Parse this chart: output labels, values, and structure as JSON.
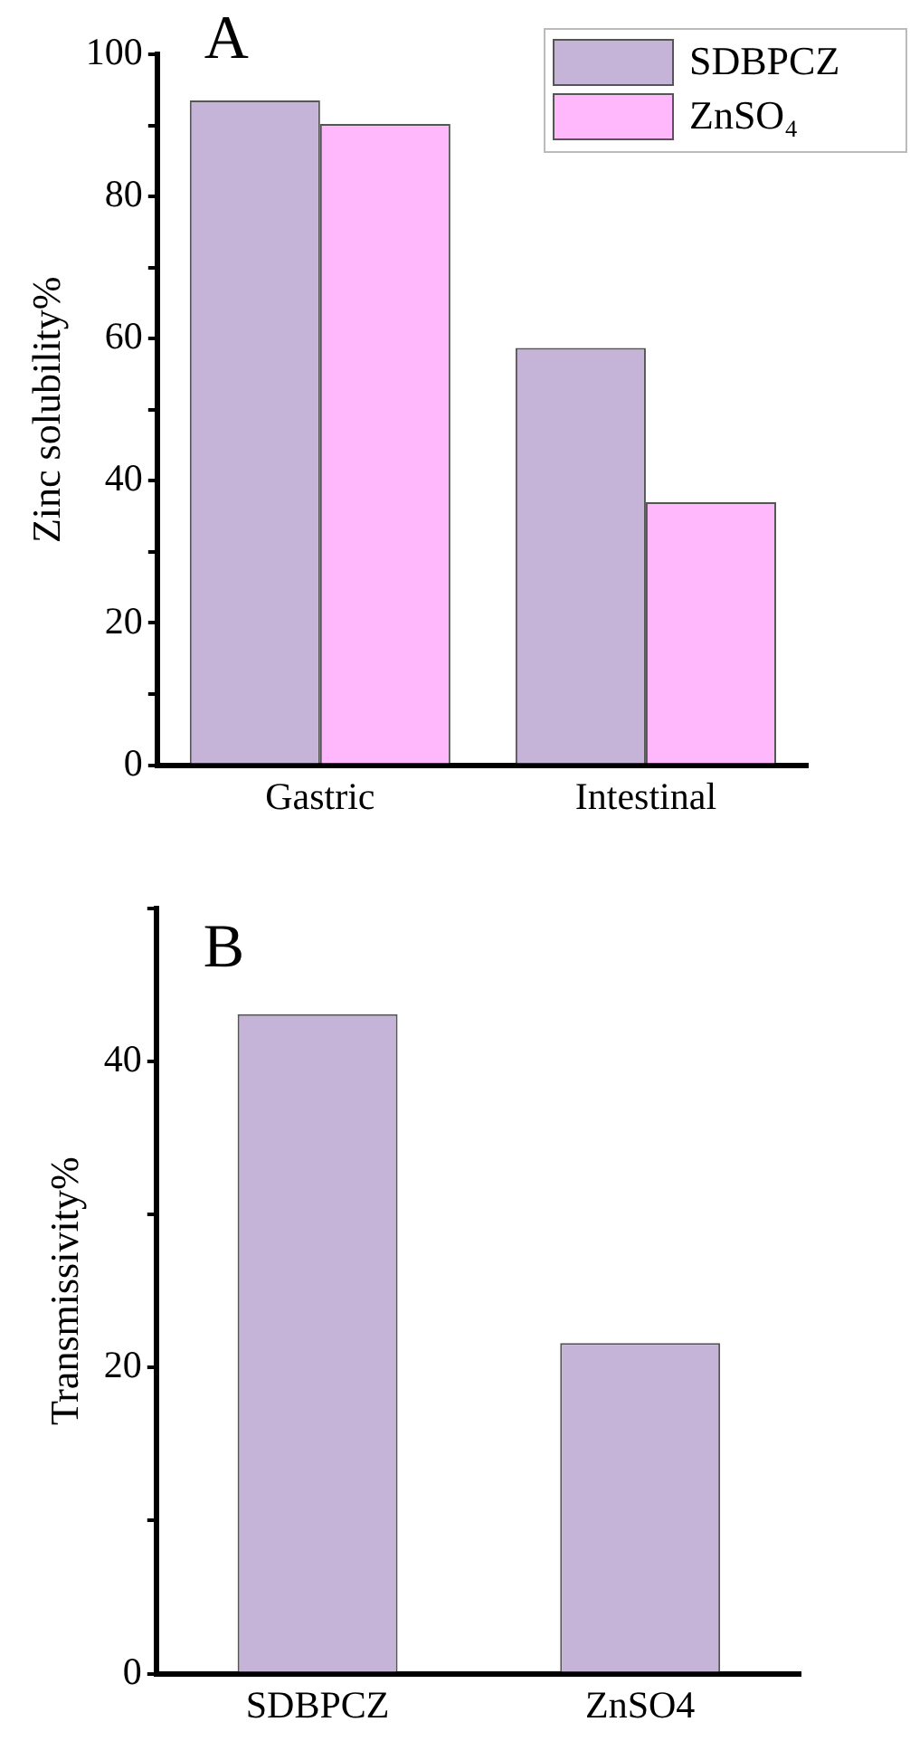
{
  "chart_data": [
    {
      "type": "bar",
      "title": "A",
      "ylabel": "Zinc solubility%",
      "categories": [
        "Gastric",
        "Intestinal"
      ],
      "series": [
        {
          "name": "SDBPCZ",
          "color": "#c6b4d8",
          "values": [
            93.5,
            58.7
          ]
        },
        {
          "name": "ZnSO₄",
          "color": "#ffb8fc",
          "values": [
            90.2,
            37.0
          ]
        }
      ],
      "ylim": [
        0,
        100
      ],
      "yticks": [
        0,
        {
          "value": 10,
          "label": null
        },
        20,
        {
          "value": 30,
          "label": null
        },
        40,
        {
          "value": 50,
          "label": null
        },
        60,
        {
          "value": 70,
          "label": null
        },
        80,
        {
          "value": 90,
          "label": null
        },
        100
      ],
      "grid": false,
      "legend": "top right"
    },
    {
      "type": "bar",
      "title": "B",
      "ylabel": "Transmissivity%",
      "categories": [
        "SDBPCZ",
        "ZnSO4"
      ],
      "series": [
        {
          "color": "#c6b4d8",
          "values": [
            43.1,
            21.6
          ]
        }
      ],
      "ylim": [
        0,
        50
      ],
      "yticks": [
        0,
        {
          "value": 10,
          "label": null
        },
        20,
        {
          "value": 30,
          "label": null
        },
        40,
        {
          "value": 50,
          "label": null
        }
      ],
      "grid": false
    }
  ]
}
